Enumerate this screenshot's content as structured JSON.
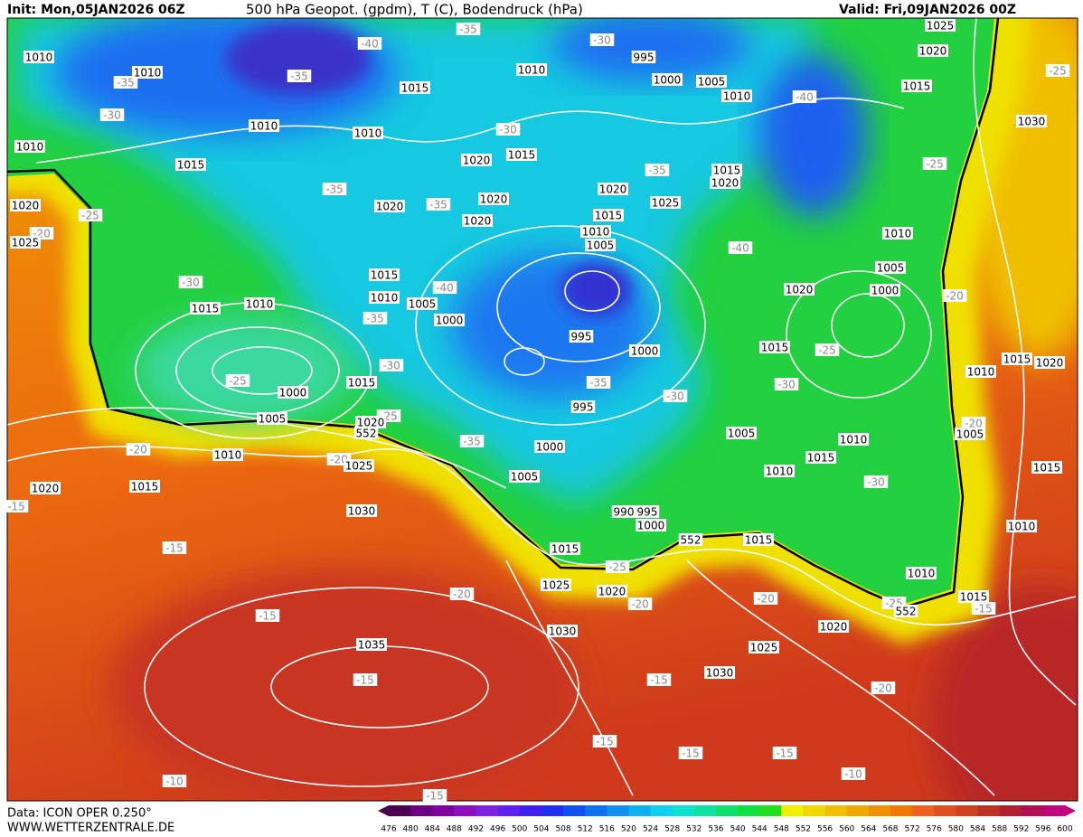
{
  "header": {
    "init": "Init: Mon,05JAN2026 06Z",
    "title": "500 hPa Geopot. (gpdm), T (C), Bodendruck (hPa)",
    "valid": "Valid: Fri,09JAN2026 00Z"
  },
  "footer": {
    "data_source": "Data: ICON OPER 0.250°",
    "website": "WWW.WETTERZENTRALE.DE"
  },
  "colorbar": {
    "ticks": [
      476,
      480,
      484,
      488,
      492,
      496,
      500,
      504,
      508,
      512,
      516,
      520,
      524,
      528,
      532,
      536,
      540,
      544,
      548,
      552,
      556,
      560,
      564,
      568,
      572,
      576,
      580,
      584,
      588,
      592,
      596,
      600
    ],
    "colors": [
      "#4b0050",
      "#6a0080",
      "#8000a0",
      "#9010c0",
      "#8020e0",
      "#6020f0",
      "#4020f0",
      "#2030f0",
      "#1050f0",
      "#1070f0",
      "#1090f0",
      "#10b0f0",
      "#10d0f0",
      "#10e0d0",
      "#10e0a0",
      "#10e070",
      "#10e040",
      "#20e020",
      "#f0f000",
      "#f0d800",
      "#f0c000",
      "#f0a800",
      "#f09000",
      "#f07800",
      "#f06020",
      "#e05020",
      "#d04020",
      "#c03020",
      "#b02030",
      "#b01050",
      "#c00080"
    ]
  },
  "map": {
    "pressure_labels": [
      "1010",
      "1010",
      "1015",
      "1010",
      "995",
      "1000",
      "1005",
      "1010",
      "1025",
      "1020",
      "1015",
      "1030",
      "1010",
      "1010",
      "1010",
      "1015",
      "1020",
      "1015",
      "1015",
      "1020",
      "1020",
      "1025",
      "1020",
      "1020",
      "1020",
      "1025",
      "1015",
      "1010",
      "1005",
      "1020",
      "1010",
      "1005",
      "1000",
      "1020",
      "1015",
      "1010",
      "1005",
      "1000",
      "1015",
      "1010",
      "995",
      "1000",
      "1015",
      "1015",
      "1020",
      "1010",
      "1000",
      "1015",
      "995",
      "1005",
      "1020",
      "1010",
      "1000",
      "1005",
      "1010",
      "1015",
      "1025",
      "1005",
      "1010",
      "1015",
      "1005",
      "1015",
      "1020",
      "1030",
      "990",
      "995",
      "1000",
      "1010",
      "1015",
      "1015",
      "1010",
      "1025",
      "1020",
      "1015",
      "1020",
      "1030",
      "1025",
      "1035",
      "1030"
    ],
    "temperature_labels": [
      "-35",
      "-40",
      "-30",
      "-35",
      "-35",
      "-30",
      "-40",
      "-25",
      "-35",
      "-35",
      "-25",
      "-20",
      "-35",
      "-30",
      "-25",
      "-40",
      "-30",
      "-40",
      "-35",
      "-20",
      "-25",
      "-30",
      "-35",
      "-30",
      "-30",
      "-25",
      "-25",
      "-20",
      "-20",
      "-35",
      "-30",
      "-20",
      "-15",
      "-15",
      "-25",
      "-20",
      "-20",
      "-20",
      "-25",
      "-15",
      "-15",
      "-15",
      "-15",
      "-20",
      "-15",
      "-15",
      "-15",
      "-10",
      "-10",
      "-15"
    ],
    "height_labels": [
      "552",
      "552",
      "552"
    ]
  }
}
